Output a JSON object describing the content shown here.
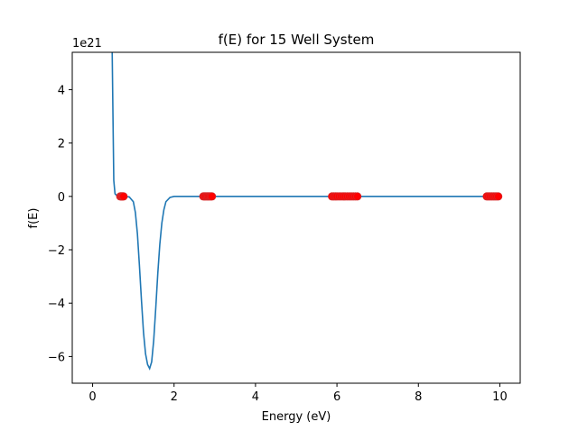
{
  "chart_data": {
    "type": "line",
    "title": "f(E) for 15 Well System",
    "xlabel": "Energy (eV)",
    "ylabel": "f(E)",
    "offset_text": "1e21",
    "xlim": [
      -0.5,
      10.5
    ],
    "ylim": [
      -7e+21,
      5.4e+21
    ],
    "x_ticks": [
      0,
      2,
      4,
      6,
      8,
      10
    ],
    "x_tick_labels": [
      "0",
      "2",
      "4",
      "6",
      "8",
      "10"
    ],
    "y_ticks": [
      -6e+21,
      -4e+21,
      -2e+21,
      0,
      2e+21,
      4e+21
    ],
    "y_tick_labels": [
      "−6",
      "−4",
      "−2",
      "0",
      "2",
      "4"
    ],
    "grid": false,
    "series": [
      {
        "color": "#1f77b4",
        "x": [
          0.45,
          0.48,
          0.5,
          0.52,
          0.55,
          0.6,
          0.7,
          0.8,
          0.9,
          1.0,
          1.05,
          1.1,
          1.15,
          1.2,
          1.25,
          1.3,
          1.35,
          1.4,
          1.45,
          1.5,
          1.55,
          1.6,
          1.65,
          1.7,
          1.75,
          1.8,
          1.9,
          2.0,
          2.2,
          3.0,
          5.0,
          8.0,
          10.0
        ],
        "y": [
          6e+21,
          5.5e+21,
          3e+21,
          6e+20,
          1e+20,
          2e+19,
          0.0,
          0.0,
          -2e+19,
          -2e+20,
          -6e+20,
          -1.4e+21,
          -2.6e+21,
          -3.9e+21,
          -5.1e+21,
          -5.9e+21,
          -6.3e+21,
          -6.45e+21,
          -6.2e+21,
          -5.4e+21,
          -4.2e+21,
          -2.9e+21,
          -1.8e+21,
          -1e+21,
          -5e+20,
          -2e+20,
          -4e+19,
          0.0,
          0.0,
          0.0,
          0.0,
          0.0,
          0.0
        ]
      }
    ],
    "roots": {
      "color": "#ff0000",
      "edge_color": "#d62728",
      "x": [
        0.68,
        0.7,
        0.72,
        0.74,
        0.76,
        2.72,
        2.75,
        2.78,
        2.81,
        2.84,
        2.87,
        2.9,
        2.93,
        5.88,
        5.92,
        5.96,
        6.0,
        6.05,
        6.1,
        6.15,
        6.2,
        6.25,
        6.3,
        6.35,
        6.4,
        6.45,
        6.5,
        9.68,
        9.72,
        9.76,
        9.8,
        9.84,
        9.88,
        9.92,
        9.96
      ],
      "y": 0
    }
  }
}
